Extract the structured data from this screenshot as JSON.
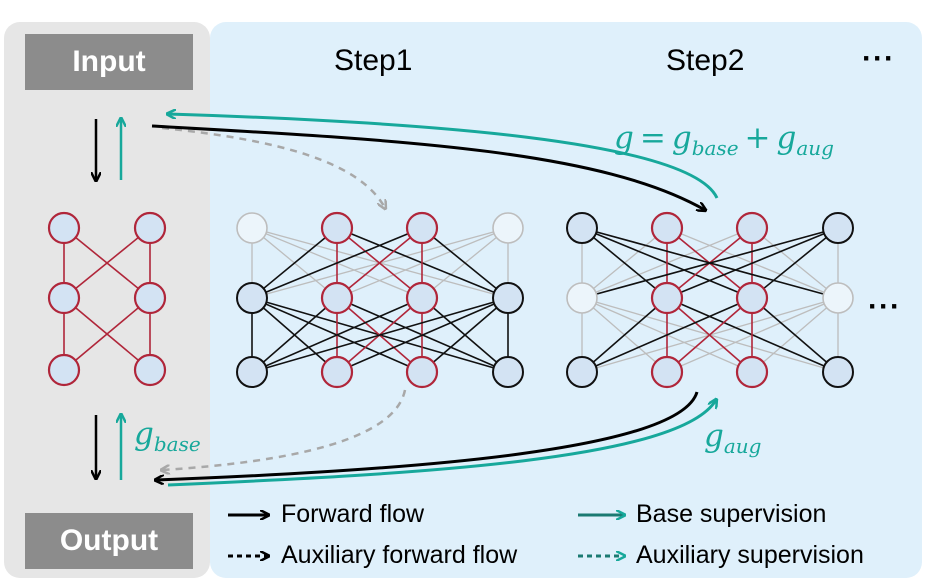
{
  "labels": {
    "input": "Input",
    "output": "Output",
    "step1": "Step1",
    "step2": "Step2",
    "ellipsis_top": "···",
    "ellipsis_mid": "···"
  },
  "math": {
    "g_base_var": "g",
    "g_base_sub": "base",
    "g_aug_var": "g",
    "g_aug_sub": "aug",
    "eq_lhs": "g",
    "eq_equals": "=",
    "eq_t1_var": "g",
    "eq_t1_sub": "base",
    "eq_plus": "+",
    "eq_t2_var": "g",
    "eq_t2_sub": "aug"
  },
  "legend": {
    "forward_flow": "Forward flow",
    "aux_forward_flow": "Auxiliary forward flow",
    "base_supervision": "Base supervision",
    "aux_supervision": "Auxiliary supervision"
  },
  "colors": {
    "panel_gray": "#e6e6e6",
    "panel_blue": "#dff0fb",
    "header_gray": "#8c8c8c",
    "node_fill": "#d3e3f3",
    "node_red": "#b0263a",
    "teal": "#17a89b",
    "dashed_gray": "#a8a8a8"
  }
}
